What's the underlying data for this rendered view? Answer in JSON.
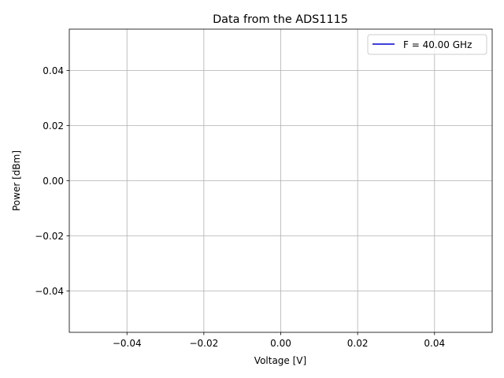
{
  "chart_data": {
    "type": "line",
    "title": "Data from the ADS1115",
    "xlabel": "Voltage [V]",
    "ylabel": "Power [dBm]",
    "xlim": [
      -0.055,
      0.055
    ],
    "ylim": [
      -0.055,
      0.055
    ],
    "xticks": [
      -0.04,
      -0.02,
      0.0,
      0.02,
      0.04
    ],
    "yticks": [
      -0.04,
      -0.02,
      0.0,
      0.02,
      0.04
    ],
    "xtick_labels": [
      "−0.04",
      "−0.02",
      "0.00",
      "0.02",
      "0.04"
    ],
    "ytick_labels": [
      "−0.04",
      "−0.02",
      "0.00",
      "0.02",
      "0.04"
    ],
    "grid": true,
    "legend_position": "top-right",
    "series": [
      {
        "name": "F = 40.00 GHz",
        "color": "#0000cd",
        "x": [],
        "y": []
      }
    ]
  }
}
